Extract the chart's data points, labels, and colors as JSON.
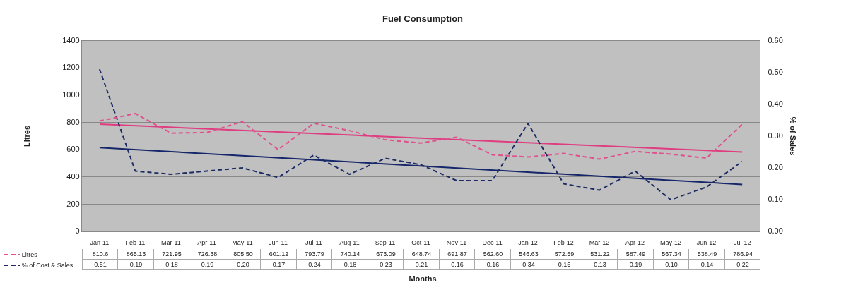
{
  "chart_data": {
    "type": "line",
    "title": "Fuel Consumption",
    "xlabel": "Months",
    "ylabel": "Litres",
    "y2label": "% of Sales",
    "categories": [
      "Jan-11",
      "Feb-11",
      "Mar-11",
      "Apr-11",
      "May-11",
      "Jun-11",
      "Jul-11",
      "Aug-11",
      "Sep-11",
      "Oct-11",
      "Nov-11",
      "Dec-11",
      "Jan-12",
      "Feb-12",
      "Mar-12",
      "Apr-12",
      "May-12",
      "Jun-12",
      "Jul-12"
    ],
    "series": [
      {
        "name": "Litres",
        "color": "#e0508c",
        "line_style": "dashed",
        "values": [
          810.6,
          865.13,
          721.95,
          726.38,
          805.5,
          601.12,
          793.79,
          740.14,
          673.09,
          648.74,
          691.87,
          562.6,
          546.63,
          572.59,
          531.22,
          587.49,
          567.34,
          538.49,
          786.94
        ],
        "value_labels": [
          "810.6",
          "865.13",
          "721.95",
          "726.38",
          "805.50",
          "601.12",
          "793.79",
          "740.14",
          "673.09",
          "648.74",
          "691.87",
          "562.60",
          "546.63",
          "572.59",
          "531.22",
          "587.49",
          "567.34",
          "538.49",
          "786.94"
        ]
      },
      {
        "name": "% of Cost & Sales",
        "color": "#1c2b63",
        "line_style": "dashed",
        "axis": "y2",
        "values": [
          0.51,
          0.19,
          0.18,
          0.19,
          0.2,
          0.17,
          0.24,
          0.18,
          0.23,
          0.21,
          0.16,
          0.16,
          0.34,
          0.15,
          0.13,
          0.19,
          0.1,
          0.14,
          0.22
        ],
        "value_labels": [
          "0.51",
          "0.19",
          "0.18",
          "0.19",
          "0.20",
          "0.17",
          "0.24",
          "0.18",
          "0.23",
          "0.21",
          "0.16",
          "0.16",
          "0.34",
          "0.15",
          "0.13",
          "0.19",
          "0.10",
          "0.14",
          "0.22"
        ]
      },
      {
        "type": "line",
        "color": "#e03c80",
        "line_style": "solid",
        "x": [
          "Jan-11",
          "Jul-12"
        ],
        "values": [
          787,
          583
        ]
      },
      {
        "type": "line",
        "color": "#16266a",
        "line_style": "solid",
        "axis": "y2",
        "x": [
          "Jan-11",
          "Jul-12"
        ],
        "values": [
          0.264,
          0.148
        ]
      }
    ],
    "ylim": [
      0,
      1400
    ],
    "yticks": [
      0,
      200,
      400,
      600,
      800,
      1000,
      1200,
      1400
    ],
    "y2lim": [
      0,
      0.6
    ],
    "y2ticks": [
      {
        "value": 0,
        "label": "0.00"
      },
      {
        "value": 0.1,
        "label": "0.10"
      },
      {
        "value": 0.2,
        "label": "0.20"
      },
      {
        "value": 0.3,
        "label": "0.30"
      },
      {
        "value": 0.4,
        "label": "0.40"
      },
      {
        "value": 0.5,
        "label": "0.50"
      },
      {
        "value": 0.6,
        "label": "0.60"
      }
    ],
    "grid": "y",
    "legend": "bottom",
    "marker": "none"
  }
}
